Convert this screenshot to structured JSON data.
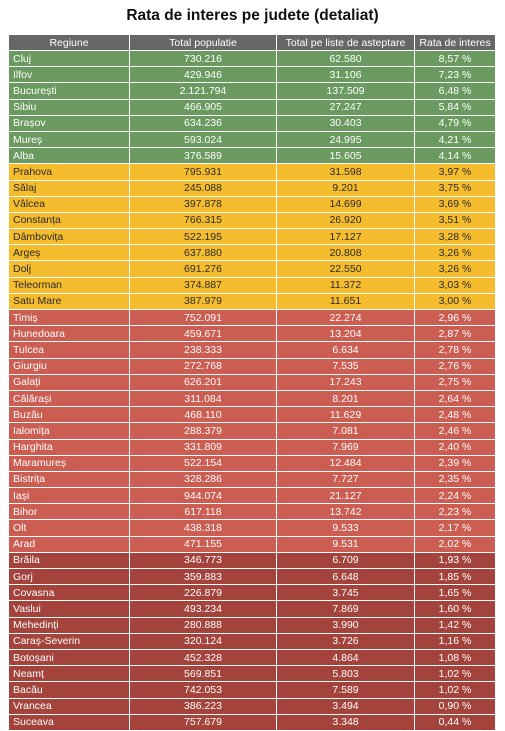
{
  "title": "Rata de interes pe judete (detaliat)",
  "headers": [
    "Regiune",
    "Total populatie",
    "Total pe liste de asteptare",
    "Rata de interes"
  ],
  "tier_colors": {
    "g1": "#6a9a60",
    "g2": "#f5bd2e",
    "g3": "#cc5d52",
    "g4": "#a3433b"
  },
  "rows": [
    {
      "region": "Cluj",
      "population": "730.216",
      "waiting": "62.580",
      "rate": "8,57 %",
      "tier": "g1"
    },
    {
      "region": "Ilfov",
      "population": "429.946",
      "waiting": "31.106",
      "rate": "7,23 %",
      "tier": "g1"
    },
    {
      "region": "București",
      "population": "2.121.794",
      "waiting": "137.509",
      "rate": "6,48 %",
      "tier": "g1"
    },
    {
      "region": "Sibiu",
      "population": "466.905",
      "waiting": "27.247",
      "rate": "5,84 %",
      "tier": "g1"
    },
    {
      "region": "Brașov",
      "population": "634.236",
      "waiting": "30.403",
      "rate": "4,79 %",
      "tier": "g1"
    },
    {
      "region": "Mureș",
      "population": "593.024",
      "waiting": "24.995",
      "rate": "4,21 %",
      "tier": "g1"
    },
    {
      "region": "Alba",
      "population": "376.589",
      "waiting": "15.605",
      "rate": "4,14 %",
      "tier": "g1"
    },
    {
      "region": "Prahova",
      "population": "795.931",
      "waiting": "31.598",
      "rate": "3,97 %",
      "tier": "g2"
    },
    {
      "region": "Sălaj",
      "population": "245.088",
      "waiting": "9.201",
      "rate": "3,75 %",
      "tier": "g2"
    },
    {
      "region": "Vâlcea",
      "population": "397.878",
      "waiting": "14.699",
      "rate": "3,69 %",
      "tier": "g2"
    },
    {
      "region": "Constanța",
      "population": "766.315",
      "waiting": "26.920",
      "rate": "3,51 %",
      "tier": "g2"
    },
    {
      "region": "Dâmbovița",
      "population": "522.195",
      "waiting": "17.127",
      "rate": "3,28 %",
      "tier": "g2"
    },
    {
      "region": "Argeș",
      "population": "637.880",
      "waiting": "20.808",
      "rate": "3,26 %",
      "tier": "g2"
    },
    {
      "region": "Dolj",
      "population": "691.276",
      "waiting": "22.550",
      "rate": "3,26 %",
      "tier": "g2"
    },
    {
      "region": "Teleorman",
      "population": "374.887",
      "waiting": "11.372",
      "rate": "3,03 %",
      "tier": "g2"
    },
    {
      "region": "Satu Mare",
      "population": "387.979",
      "waiting": "11.651",
      "rate": "3,00 %",
      "tier": "g2"
    },
    {
      "region": "Timiș",
      "population": "752.091",
      "waiting": "22.274",
      "rate": "2,96 %",
      "tier": "g3"
    },
    {
      "region": "Hunedoara",
      "population": "459.671",
      "waiting": "13.204",
      "rate": "2,87 %",
      "tier": "g3"
    },
    {
      "region": "Tulcea",
      "population": "238.333",
      "waiting": "6.634",
      "rate": "2,78 %",
      "tier": "g3"
    },
    {
      "region": "Giurgiu",
      "population": "272.768",
      "waiting": "7.535",
      "rate": "2,76 %",
      "tier": "g3"
    },
    {
      "region": "Galați",
      "population": "626.201",
      "waiting": "17.243",
      "rate": "2,75 %",
      "tier": "g3"
    },
    {
      "region": "Călărași",
      "population": "311.084",
      "waiting": "8.201",
      "rate": "2,64 %",
      "tier": "g3"
    },
    {
      "region": "Buzău",
      "population": "468.110",
      "waiting": "11.629",
      "rate": "2,48 %",
      "tier": "g3"
    },
    {
      "region": "Ialomița",
      "population": "288.379",
      "waiting": "7.081",
      "rate": "2,46 %",
      "tier": "g3"
    },
    {
      "region": "Harghita",
      "population": "331.809",
      "waiting": "7.969",
      "rate": "2,40 %",
      "tier": "g3"
    },
    {
      "region": "Maramureș",
      "population": "522.154",
      "waiting": "12.484",
      "rate": "2,39 %",
      "tier": "g3"
    },
    {
      "region": "Bistrița",
      "population": "328.286",
      "waiting": "7.727",
      "rate": "2,35 %",
      "tier": "g3"
    },
    {
      "region": "Iași",
      "population": "944.074",
      "waiting": "21.127",
      "rate": "2,24 %",
      "tier": "g3"
    },
    {
      "region": "Bihor",
      "population": "617.118",
      "waiting": "13.742",
      "rate": "2,23 %",
      "tier": "g3"
    },
    {
      "region": "Olt",
      "population": "438.318",
      "waiting": "9.533",
      "rate": "2,17 %",
      "tier": "g3"
    },
    {
      "region": "Arad",
      "population": "471.155",
      "waiting": "9.531",
      "rate": "2,02 %",
      "tier": "g3"
    },
    {
      "region": "Brăila",
      "population": "346.773",
      "waiting": "6.709",
      "rate": "1,93 %",
      "tier": "g4"
    },
    {
      "region": "Gorj",
      "population": "359.883",
      "waiting": "6.648",
      "rate": "1,85 %",
      "tier": "g4"
    },
    {
      "region": "Covasna",
      "population": "226.879",
      "waiting": "3.745",
      "rate": "1,65 %",
      "tier": "g4"
    },
    {
      "region": "Vaslui",
      "population": "493.234",
      "waiting": "7.869",
      "rate": "1,60 %",
      "tier": "g4"
    },
    {
      "region": "Mehedinți",
      "population": "280.888",
      "waiting": "3.990",
      "rate": "1,42 %",
      "tier": "g4"
    },
    {
      "region": "Caraș-Severin",
      "population": "320.124",
      "waiting": "3.726",
      "rate": "1,16 %",
      "tier": "g4"
    },
    {
      "region": "Botoșani",
      "population": "452.328",
      "waiting": "4.864",
      "rate": "1,08 %",
      "tier": "g4"
    },
    {
      "region": "Neamț",
      "population": "569.851",
      "waiting": "5.803",
      "rate": "1,02 %",
      "tier": "g4"
    },
    {
      "region": "Bacău",
      "population": "742.053",
      "waiting": "7.589",
      "rate": "1,02 %",
      "tier": "g4"
    },
    {
      "region": "Vrancea",
      "population": "386.223",
      "waiting": "3.494",
      "rate": "0,90 %",
      "tier": "g4"
    },
    {
      "region": "Suceava",
      "population": "757.679",
      "waiting": "3.348",
      "rate": "0,44 %",
      "tier": "g4"
    }
  ]
}
